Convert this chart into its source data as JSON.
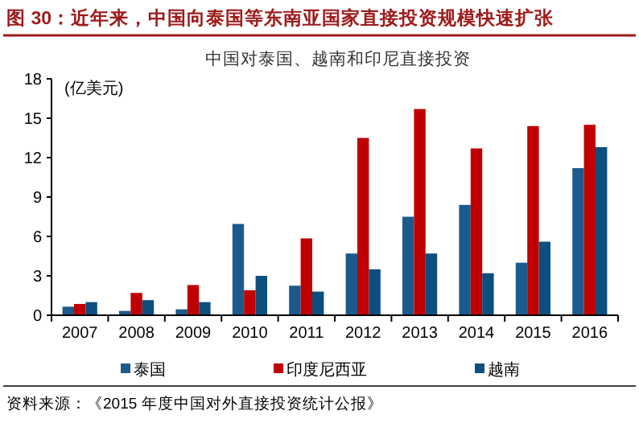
{
  "chart_data": {
    "type": "bar",
    "title": "图 30：近年来，中国向泰国等东南亚国家直接投资规模快速扩张",
    "subtitle": "中国对泰国、越南和印尼直接投资",
    "ylabel": "(亿美元)",
    "annotations": [
      "资料来源：《2015 年度中国对外直接投资统计公报》"
    ],
    "categories": [
      "2007",
      "2008",
      "2009",
      "2010",
      "2011",
      "2012",
      "2013",
      "2014",
      "2015",
      "2016"
    ],
    "series": [
      {
        "name": "泰国",
        "color": "#1b5a8c",
        "values": [
          0.65,
          0.33,
          0.45,
          6.95,
          2.25,
          4.7,
          7.5,
          8.4,
          4.0,
          11.2
        ]
      },
      {
        "name": "印度尼西亚",
        "color": "#c00000",
        "values": [
          0.86,
          1.7,
          2.3,
          1.9,
          5.85,
          13.5,
          15.7,
          12.7,
          14.4,
          14.5
        ]
      },
      {
        "name": "越南",
        "color": "#0c4f7e",
        "values": [
          1.0,
          1.15,
          1.0,
          3.0,
          1.8,
          3.5,
          4.7,
          3.2,
          5.6,
          12.8
        ]
      }
    ],
    "ylim": [
      0,
      18
    ],
    "yticks": [
      0,
      3,
      6,
      9,
      12,
      15,
      18
    ],
    "legend": "bottom"
  }
}
